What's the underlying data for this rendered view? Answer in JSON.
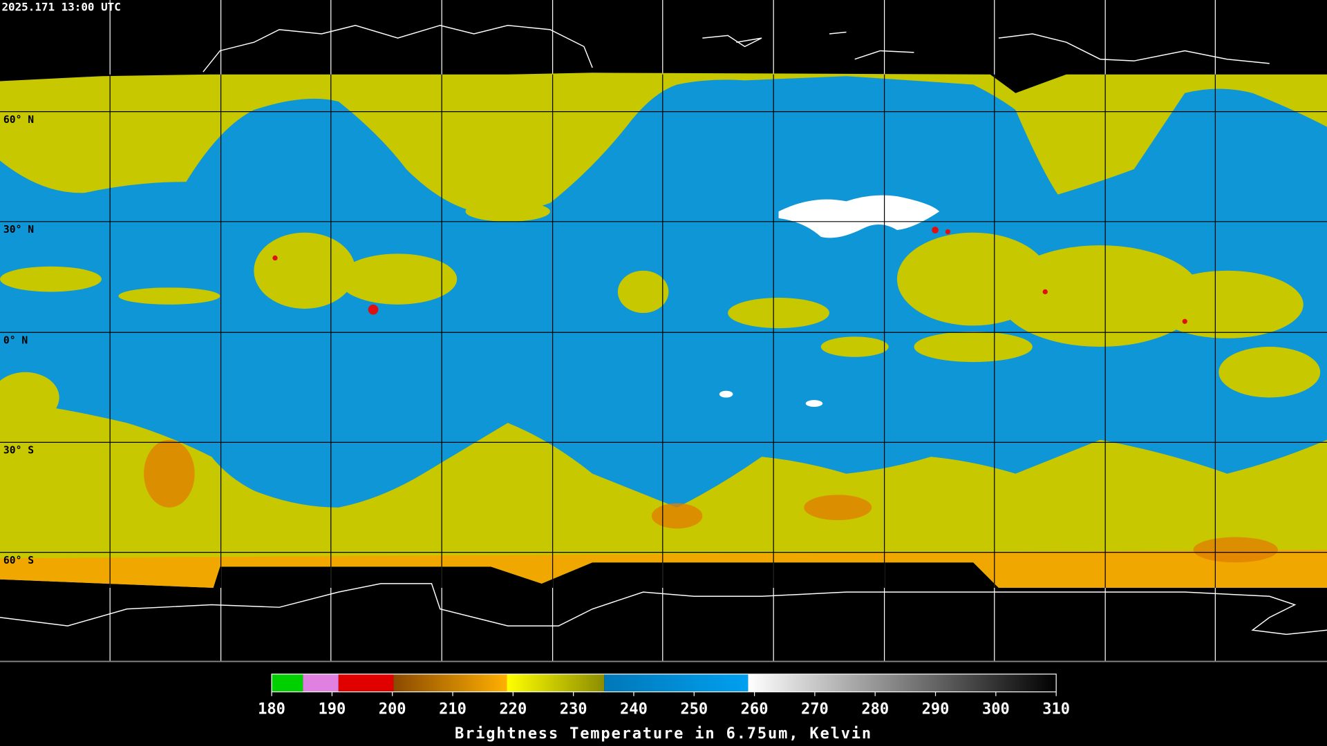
{
  "timestamp": "2025.171 13:00 UTC",
  "latitude_labels": [
    "60° N",
    "30° N",
    "0° N",
    "30° S",
    "60° S"
  ],
  "colorbar": {
    "ticks": [
      180,
      190,
      200,
      210,
      220,
      230,
      240,
      250,
      260,
      270,
      280,
      290,
      300,
      310
    ],
    "title": "Brightness Temperature in 6.75um, Kelvin"
  }
}
